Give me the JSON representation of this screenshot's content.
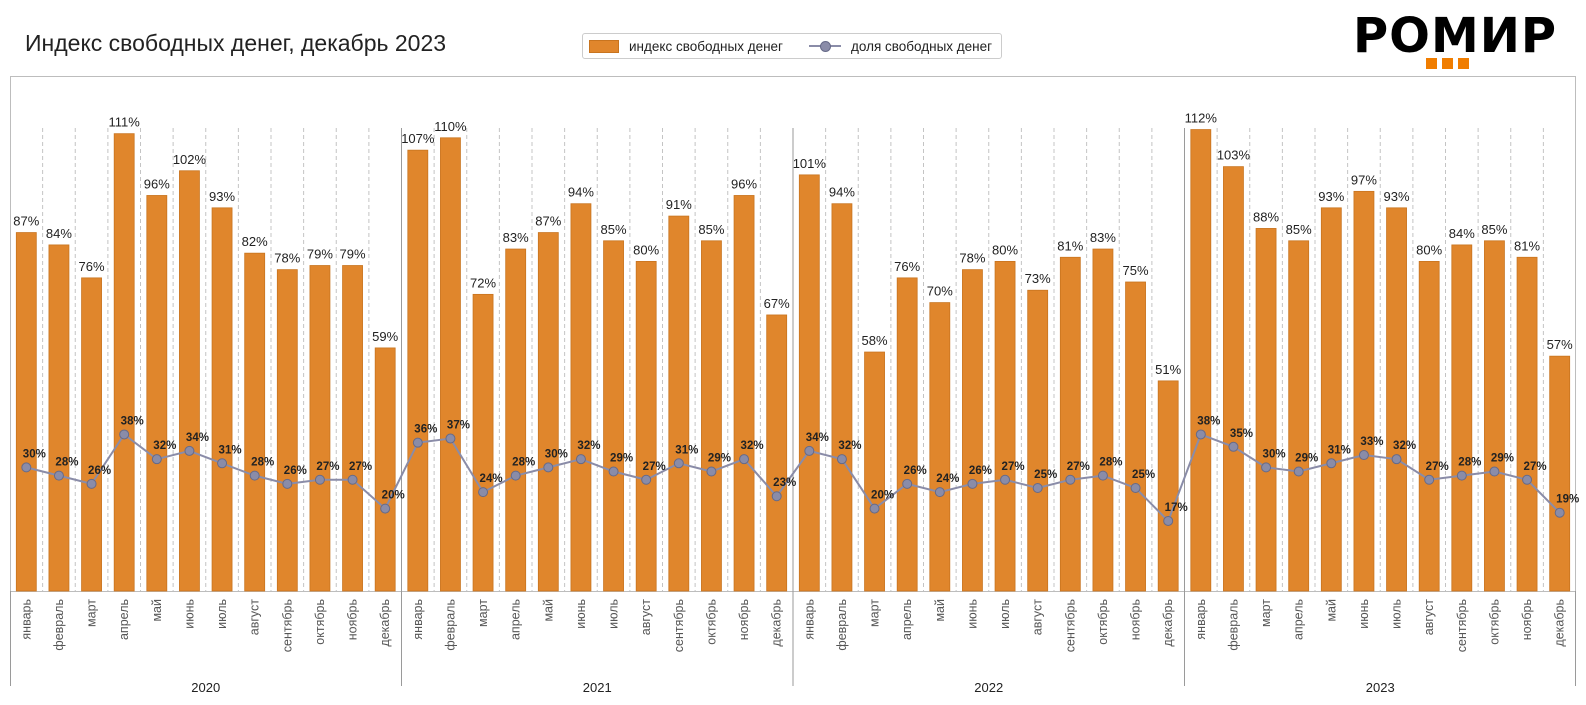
{
  "title": "Индекс свободных денег, декабрь 2023",
  "logo": {
    "text": "РОМИР"
  },
  "legend": {
    "bar_label": "индекс свободных денег",
    "line_label": "доля свободных денег"
  },
  "colors": {
    "bar": "#e0862c",
    "bar_edge": "#c8741f",
    "line": "#8a8ca8",
    "marker_edge": "#666a88",
    "logo_accent": "#f07d00"
  },
  "chart_data": {
    "type": "bar",
    "months": [
      "январь",
      "февраль",
      "март",
      "апрель",
      "май",
      "июнь",
      "июль",
      "август",
      "сентябрь",
      "октябрь",
      "ноябрь",
      "декабрь"
    ],
    "years": [
      "2020",
      "2021",
      "2022",
      "2023"
    ],
    "ylim": [
      0,
      125
    ],
    "grid": "vertical dashed",
    "legend_position": "top-center",
    "series": [
      {
        "name": "индекс свободных денег",
        "kind": "bar",
        "values": [
          87,
          84,
          76,
          111,
          96,
          102,
          93,
          82,
          78,
          79,
          79,
          59,
          107,
          110,
          72,
          83,
          87,
          94,
          85,
          80,
          91,
          85,
          96,
          67,
          101,
          94,
          58,
          76,
          70,
          78,
          80,
          73,
          81,
          83,
          75,
          51,
          112,
          103,
          88,
          85,
          93,
          97,
          93,
          80,
          84,
          85,
          81,
          57
        ]
      },
      {
        "name": "доля свободных денег",
        "kind": "line",
        "values": [
          30,
          28,
          26,
          38,
          32,
          34,
          31,
          28,
          26,
          27,
          27,
          20,
          36,
          37,
          24,
          28,
          30,
          32,
          29,
          27,
          31,
          29,
          32,
          23,
          34,
          32,
          20,
          26,
          24,
          26,
          27,
          25,
          27,
          28,
          25,
          17,
          38,
          35,
          30,
          29,
          31,
          33,
          32,
          27,
          28,
          29,
          27,
          19
        ]
      }
    ],
    "bar_labels": [
      "87%",
      "84%",
      "76%",
      "111%",
      "96%",
      "102%",
      "93%",
      "82%",
      "78%",
      "79%",
      "79%",
      "59%",
      "107%",
      "110%",
      "72%",
      "83%",
      "87%",
      "94%",
      "85%",
      "80%",
      "91%",
      "85%",
      "96%",
      "67%",
      "101%",
      "94%",
      "58%",
      "76%",
      "70%",
      "78%",
      "80%",
      "73%",
      "81%",
      "83%",
      "75%",
      "51%",
      "112%",
      "103%",
      "88%",
      "85%",
      "93%",
      "97%",
      "93%",
      "80%",
      "84%",
      "85%",
      "81%",
      "57%"
    ],
    "line_labels": [
      "30%",
      "28%",
      "26%",
      "38%",
      "32%",
      "34%",
      "31%",
      "28%",
      "26%",
      "27%",
      "27%",
      "20%",
      "36%",
      "37%",
      "24%",
      "28%",
      "30%",
      "32%",
      "29%",
      "27%",
      "31%",
      "29%",
      "32%",
      "23%",
      "34%",
      "32%",
      "20%",
      "26%",
      "24%",
      "26%",
      "27%",
      "25%",
      "27%",
      "28%",
      "25%",
      "17%",
      "38%",
      "35%",
      "30%",
      "29%",
      "31%",
      "33%",
      "32%",
      "27%",
      "28%",
      "29%",
      "27%",
      "19%"
    ]
  }
}
